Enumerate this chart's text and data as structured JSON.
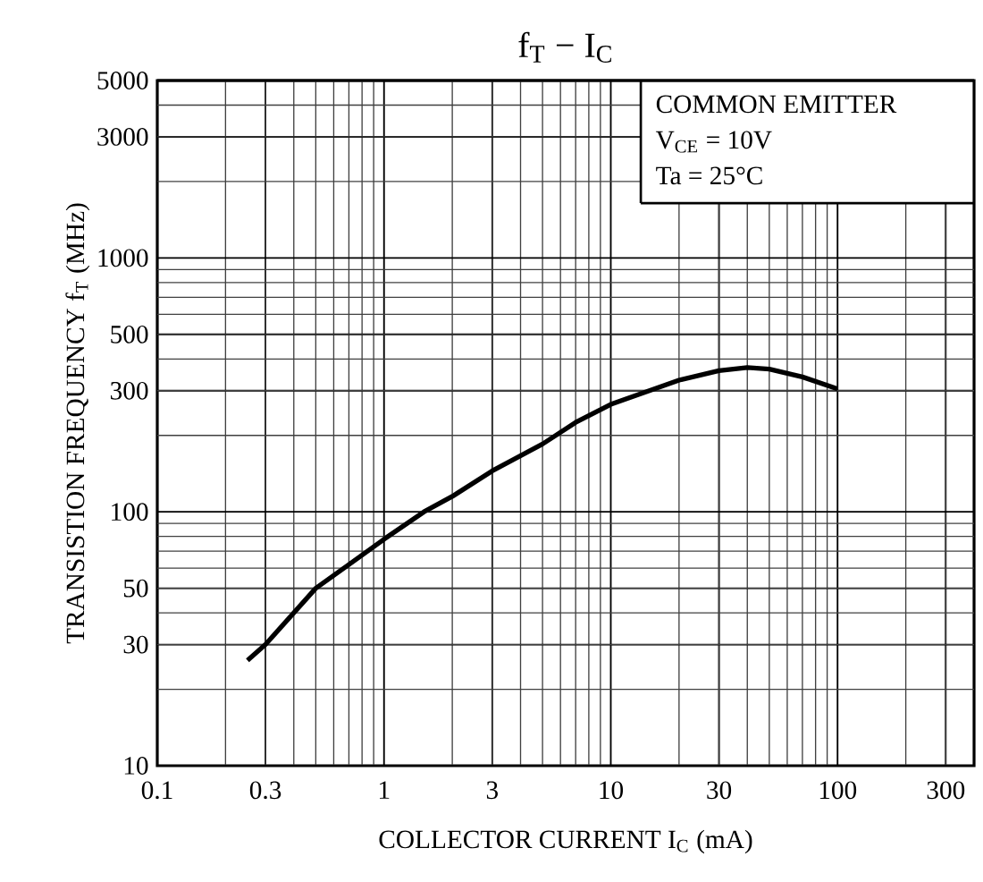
{
  "chart_data": {
    "type": "line",
    "title": "f$_{T}$ − I$_{C}$",
    "xlabel": "COLLECTOR CURRENT I$_{C}$ (mA)",
    "ylabel": "TRANSISTION FREQUENCY  f$_{T}$  (MHz)",
    "annotations": [
      "COMMON EMITTER",
      "V$_{CE}$ = 10V",
      "Ta = 25°C"
    ],
    "x": [
      0.25,
      0.3,
      0.5,
      0.7,
      1,
      1.5,
      2,
      3,
      5,
      7,
      10,
      20,
      30,
      40,
      50,
      70,
      100
    ],
    "series": [
      {
        "color": "#000000",
        "values": [
          26,
          30,
          50,
          62,
          78,
          100,
          115,
          145,
          185,
          225,
          265,
          330,
          360,
          370,
          365,
          340,
          305
        ]
      }
    ],
    "log": "xy",
    "xlim": [
      0.1,
      400
    ],
    "ylim": [
      10,
      5000
    ],
    "xticks": [
      0.1,
      0.3,
      1,
      3,
      10,
      30,
      100,
      300
    ],
    "yticks": [
      10,
      30,
      50,
      100,
      300,
      500,
      1000,
      3000,
      5000
    ],
    "grid": true,
    "marker": "none",
    "line_style": "solid"
  }
}
